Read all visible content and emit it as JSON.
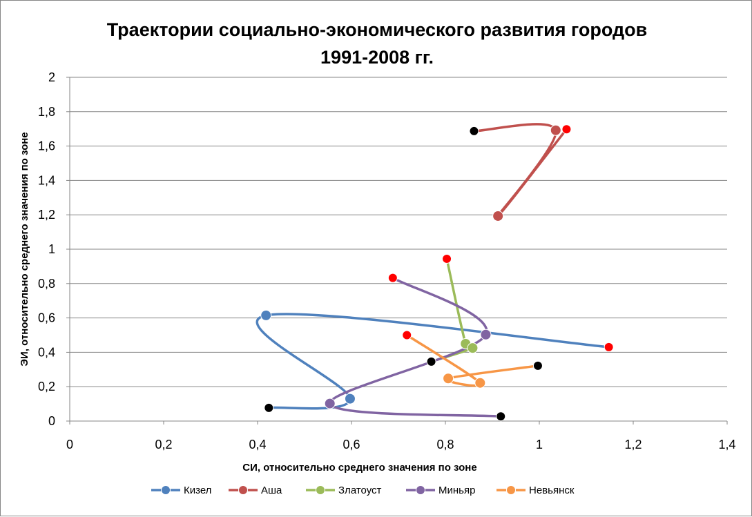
{
  "chart_data": {
    "type": "scatter",
    "title_lines": [
      "Траектории социально-экономического  развития городов",
      "1991-2008 гг."
    ],
    "xlabel": "СИ, относительно среднего значения по зоне",
    "ylabel": "ЭИ, относительно среднего значения по зоне",
    "xlim": [
      0,
      1.4
    ],
    "ylim": [
      0,
      2
    ],
    "xticks": [
      0,
      0.2,
      0.4,
      0.6,
      0.8,
      1,
      1.2,
      1.4
    ],
    "xtick_labels": [
      "0",
      "0,2",
      "0,4",
      "0,6",
      "0,8",
      "1",
      "1,2",
      "1,4"
    ],
    "yticks": [
      0,
      0.2,
      0.4,
      0.6,
      0.8,
      1,
      1.2,
      1.4,
      1.6,
      1.8,
      2
    ],
    "ytick_labels": [
      "0",
      "0,2",
      "0,4",
      "0,6",
      "0,8",
      "1",
      "1,2",
      "1,4",
      "1,6",
      "1,8",
      "2"
    ],
    "grid": "horizontal",
    "legend_position": "bottom",
    "start_marker_color": "#ff0000",
    "end_marker_color": "#000000",
    "series": [
      {
        "name": "Кизел",
        "color": "#4f81bd",
        "points": [
          [
            1.148,
            0.43
          ],
          [
            0.418,
            0.615
          ],
          [
            0.597,
            0.13
          ],
          [
            0.424,
            0.077
          ]
        ]
      },
      {
        "name": "Аша",
        "color": "#c0504d",
        "points": [
          [
            1.058,
            1.698
          ],
          [
            0.912,
            1.193
          ],
          [
            1.035,
            1.692
          ],
          [
            0.861,
            1.687
          ]
        ]
      },
      {
        "name": "Златоуст",
        "color": "#9bbb59",
        "points": [
          [
            0.803,
            0.944
          ],
          [
            0.843,
            0.45
          ],
          [
            0.858,
            0.425
          ],
          [
            0.77,
            0.346
          ]
        ]
      },
      {
        "name": "Миньяр",
        "color": "#8064a2",
        "points": [
          [
            0.688,
            0.833
          ],
          [
            0.886,
            0.503
          ],
          [
            0.554,
            0.102
          ],
          [
            0.918,
            0.027
          ]
        ]
      },
      {
        "name": "Невьянск",
        "color": "#f79646",
        "points": [
          [
            0.718,
            0.5
          ],
          [
            0.874,
            0.222
          ],
          [
            0.806,
            0.248
          ],
          [
            0.997,
            0.322
          ]
        ]
      }
    ]
  }
}
